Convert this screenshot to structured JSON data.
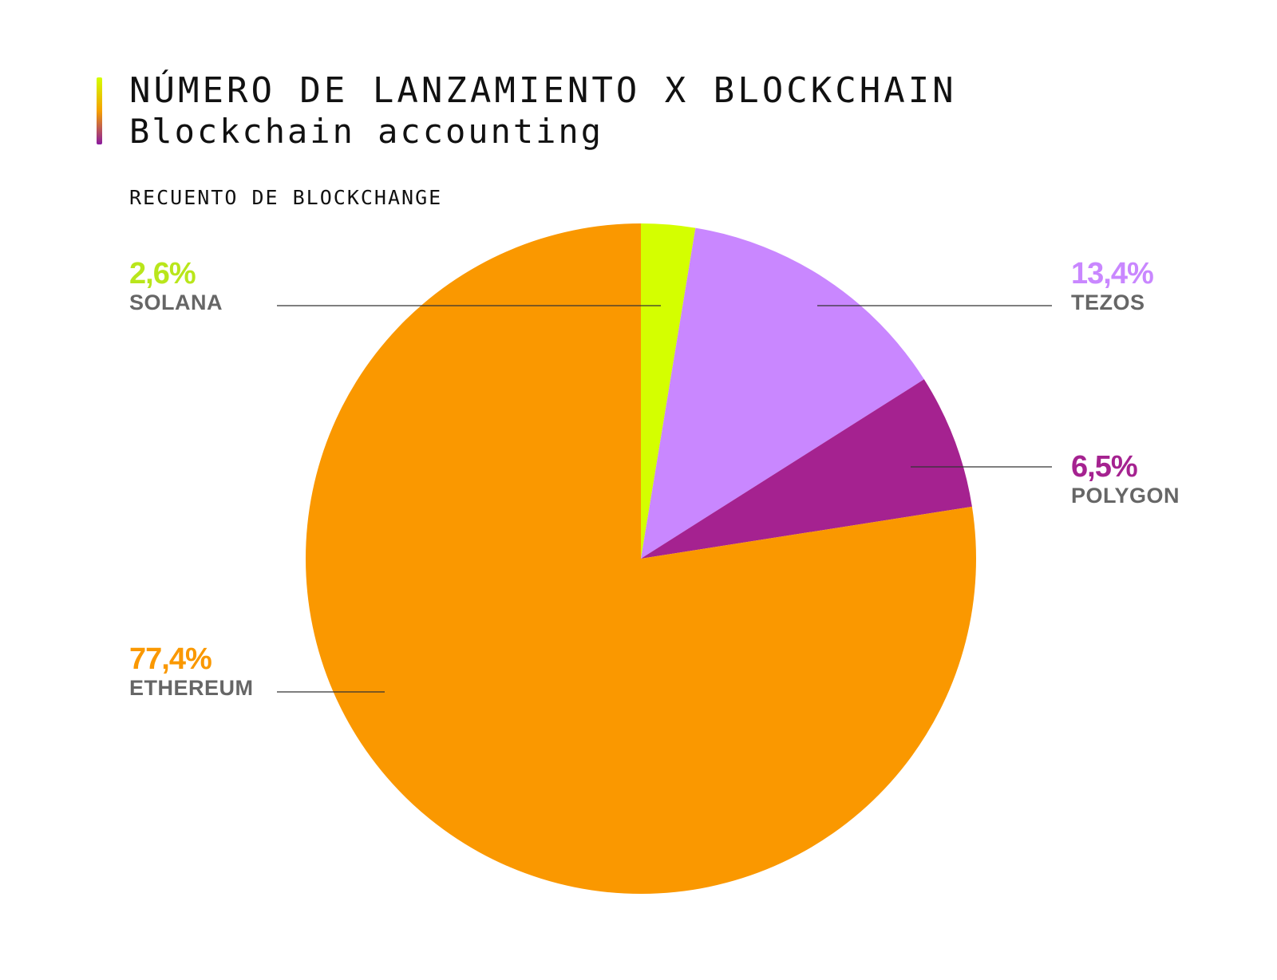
{
  "header": {
    "title": "NÚMERO DE LANZAMIENTO X BLOCKCHAIN",
    "subtitle": "Blockchain accounting",
    "caption": "RECUENTO DE BLOCKCHANGE",
    "accent_gradient": [
      "#d4ff00",
      "#f5a000",
      "#8a1aa0"
    ]
  },
  "chart_data": {
    "type": "pie",
    "title": "NÚMERO DE LANZAMIENTO X BLOCKCHAIN",
    "subtitle": "Blockchain accounting",
    "start": "12 o'clock",
    "direction": "clockwise",
    "slices": [
      {
        "name": "SOLANA",
        "value": 2.6,
        "label": "2,6%",
        "color": "#d4ff00",
        "text_color": "#b9e61b"
      },
      {
        "name": "TEZOS",
        "value": 13.4,
        "label": "13,4%",
        "color": "#c987ff",
        "text_color": "#c987ff"
      },
      {
        "name": "POLYGON",
        "value": 6.5,
        "label": "6,5%",
        "color": "#a52290",
        "text_color": "#a52290"
      },
      {
        "name": "ETHEREUM",
        "value": 77.4,
        "label": "77,4%",
        "color": "#fa9800",
        "text_color": "#fa9800"
      }
    ]
  }
}
